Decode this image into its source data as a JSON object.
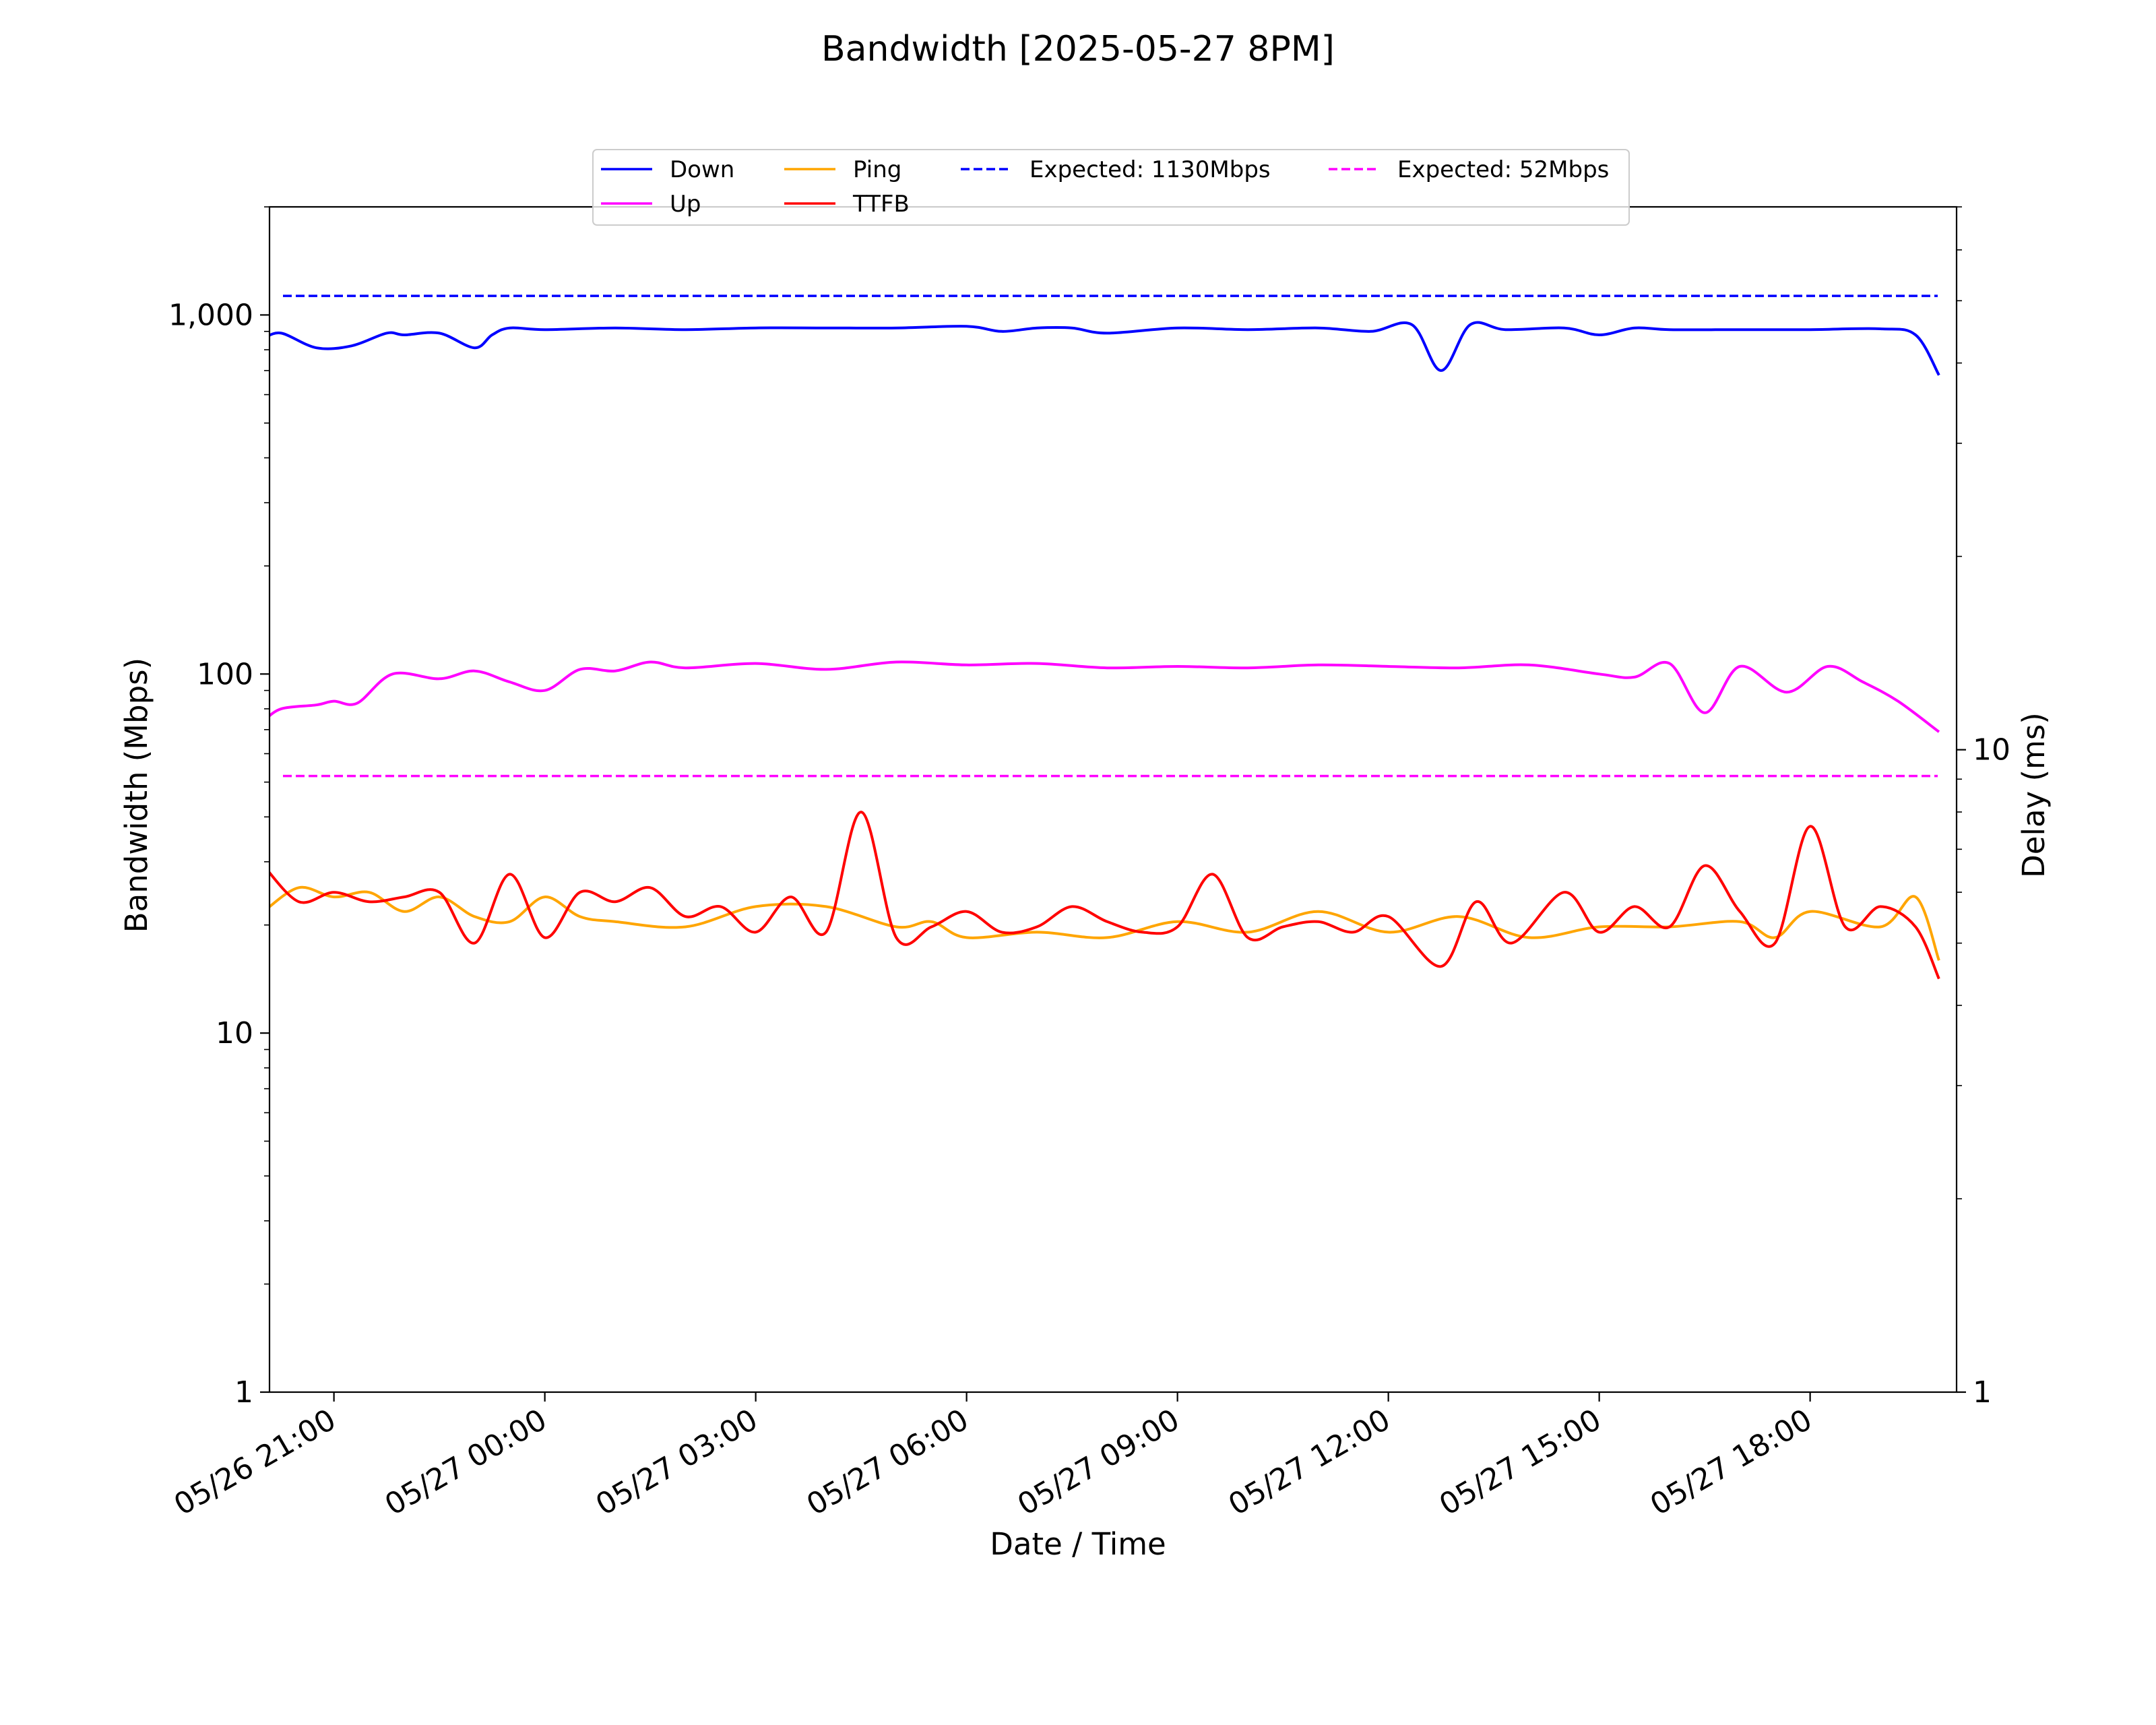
{
  "chart_data": {
    "type": "line",
    "title": "Bandwidth [2025-05-27 8PM]",
    "xlabel": "Date / Time",
    "ylabel": "Bandwidth (Mbps)",
    "y2label": "Delay (ms)",
    "y_scale": "log",
    "y2_scale": "log",
    "ylim": [
      1,
      2000
    ],
    "y2lim": [
      1,
      70
    ],
    "y_ticks": [
      1,
      10,
      100,
      1000
    ],
    "y_tick_labels": [
      "1",
      "10",
      "100",
      "1,000"
    ],
    "y2_ticks": [
      1,
      10
    ],
    "y2_tick_labels": [
      "1",
      "10"
    ],
    "xlim": [
      "2025-05-26 20:05",
      "2025-05-27 20:05"
    ],
    "x_ticks": [
      "2025-05-26 21:00",
      "2025-05-27 00:00",
      "2025-05-27 03:00",
      "2025-05-27 06:00",
      "2025-05-27 09:00",
      "2025-05-27 12:00",
      "2025-05-27 15:00",
      "2025-05-27 18:00"
    ],
    "x_tick_labels": [
      "05/26 21:00",
      "05/27 00:00",
      "05/27 03:00",
      "05/27 06:00",
      "05/27 09:00",
      "05/27 12:00",
      "05/27 15:00",
      "05/27 18:00"
    ],
    "grid": false,
    "legend_position": "top-center",
    "series": [
      {
        "name": "Down",
        "axis": "left",
        "color": "#0000ff",
        "style": "solid",
        "x": [
          "2025-05-26 20:00",
          "2025-05-26 20:15",
          "2025-05-26 20:45",
          "2025-05-26 21:15",
          "2025-05-26 21:45",
          "2025-05-26 22:00",
          "2025-05-26 22:30",
          "2025-05-26 23:00",
          "2025-05-26 23:15",
          "2025-05-26 23:30",
          "2025-05-27 00:00",
          "2025-05-27 01:00",
          "2025-05-27 02:00",
          "2025-05-27 03:00",
          "2025-05-27 04:00",
          "2025-05-27 05:00",
          "2025-05-27 06:00",
          "2025-05-27 06:30",
          "2025-05-27 07:00",
          "2025-05-27 07:30",
          "2025-05-27 08:00",
          "2025-05-27 09:00",
          "2025-05-27 10:00",
          "2025-05-27 11:00",
          "2025-05-27 11:45",
          "2025-05-27 12:20",
          "2025-05-27 12:45",
          "2025-05-27 13:10",
          "2025-05-27 13:40",
          "2025-05-27 14:30",
          "2025-05-27 15:00",
          "2025-05-27 15:30",
          "2025-05-27 16:00",
          "2025-05-27 17:00",
          "2025-05-27 18:00",
          "2025-05-27 19:00",
          "2025-05-27 19:30",
          "2025-05-27 19:50"
        ],
        "values": [
          860,
          890,
          810,
          820,
          890,
          880,
          890,
          810,
          880,
          920,
          910,
          920,
          910,
          920,
          920,
          920,
          930,
          900,
          920,
          920,
          890,
          920,
          910,
          920,
          900,
          940,
          700,
          940,
          910,
          920,
          880,
          920,
          910,
          910,
          910,
          915,
          880,
          680
        ]
      },
      {
        "name": "Up",
        "axis": "left",
        "color": "#ff00ff",
        "style": "solid",
        "x": [
          "2025-05-26 20:00",
          "2025-05-26 20:15",
          "2025-05-26 20:45",
          "2025-05-26 21:00",
          "2025-05-26 21:20",
          "2025-05-26 21:50",
          "2025-05-26 22:30",
          "2025-05-26 23:00",
          "2025-05-26 23:30",
          "2025-05-27 00:00",
          "2025-05-27 00:30",
          "2025-05-27 01:00",
          "2025-05-27 01:30",
          "2025-05-27 02:00",
          "2025-05-27 03:00",
          "2025-05-27 04:00",
          "2025-05-27 05:00",
          "2025-05-27 06:00",
          "2025-05-27 07:00",
          "2025-05-27 08:00",
          "2025-05-27 09:00",
          "2025-05-27 10:00",
          "2025-05-27 11:00",
          "2025-05-27 12:00",
          "2025-05-27 13:00",
          "2025-05-27 14:00",
          "2025-05-27 15:00",
          "2025-05-27 15:30",
          "2025-05-27 16:00",
          "2025-05-27 16:30",
          "2025-05-27 17:00",
          "2025-05-27 17:40",
          "2025-05-27 18:15",
          "2025-05-27 18:45",
          "2025-05-27 19:15",
          "2025-05-27 19:50"
        ],
        "values": [
          74,
          80,
          82,
          84,
          83,
          100,
          97,
          102,
          95,
          90,
          103,
          102,
          108,
          104,
          107,
          103,
          108,
          106,
          107,
          104,
          105,
          104,
          106,
          105,
          104,
          106,
          100,
          98,
          107,
          78,
          105,
          89,
          105,
          95,
          84,
          69
        ]
      },
      {
        "name": "Ping",
        "axis": "right",
        "color": "#ffa500",
        "style": "solid",
        "x": [
          "2025-05-26 20:00",
          "2025-05-26 20:30",
          "2025-05-26 21:00",
          "2025-05-26 21:30",
          "2025-05-26 22:00",
          "2025-05-26 22:30",
          "2025-05-26 23:00",
          "2025-05-26 23:30",
          "2025-05-27 00:00",
          "2025-05-27 00:30",
          "2025-05-27 01:00",
          "2025-05-27 02:00",
          "2025-05-27 03:00",
          "2025-05-27 04:00",
          "2025-05-27 05:00",
          "2025-05-27 05:30",
          "2025-05-27 06:00",
          "2025-05-27 07:00",
          "2025-05-27 08:00",
          "2025-05-27 09:00",
          "2025-05-27 10:00",
          "2025-05-27 11:00",
          "2025-05-27 12:00",
          "2025-05-27 13:00",
          "2025-05-27 14:00",
          "2025-05-27 15:00",
          "2025-05-27 16:00",
          "2025-05-27 17:00",
          "2025-05-27 17:30",
          "2025-05-27 18:00",
          "2025-05-27 19:00",
          "2025-05-27 19:30",
          "2025-05-27 19:50"
        ],
        "values": [
          5.6,
          6.1,
          5.9,
          6.0,
          5.6,
          5.9,
          5.5,
          5.4,
          5.9,
          5.5,
          5.4,
          5.3,
          5.7,
          5.7,
          5.3,
          5.4,
          5.1,
          5.2,
          5.1,
          5.4,
          5.2,
          5.6,
          5.2,
          5.5,
          5.1,
          5.3,
          5.3,
          5.4,
          5.1,
          5.6,
          5.3,
          5.9,
          4.7
        ]
      },
      {
        "name": "TTFB",
        "axis": "right",
        "color": "#ff0000",
        "style": "solid",
        "x": [
          "2025-05-26 20:00",
          "2025-05-26 20:30",
          "2025-05-26 21:00",
          "2025-05-26 21:30",
          "2025-05-26 22:00",
          "2025-05-26 22:30",
          "2025-05-26 23:00",
          "2025-05-26 23:30",
          "2025-05-27 00:00",
          "2025-05-27 00:30",
          "2025-05-27 01:00",
          "2025-05-27 01:30",
          "2025-05-27 02:00",
          "2025-05-27 02:30",
          "2025-05-27 03:00",
          "2025-05-27 03:30",
          "2025-05-27 04:00",
          "2025-05-27 04:30",
          "2025-05-27 05:00",
          "2025-05-27 05:30",
          "2025-05-27 06:00",
          "2025-05-27 06:30",
          "2025-05-27 07:00",
          "2025-05-27 07:30",
          "2025-05-27 08:00",
          "2025-05-27 08:30",
          "2025-05-27 09:00",
          "2025-05-27 09:30",
          "2025-05-27 10:00",
          "2025-05-27 10:30",
          "2025-05-27 11:00",
          "2025-05-27 11:30",
          "2025-05-27 12:00",
          "2025-05-27 12:45",
          "2025-05-27 13:15",
          "2025-05-27 13:45",
          "2025-05-27 14:30",
          "2025-05-27 15:00",
          "2025-05-27 15:30",
          "2025-05-27 16:00",
          "2025-05-27 16:30",
          "2025-05-27 17:00",
          "2025-05-27 17:30",
          "2025-05-27 18:00",
          "2025-05-27 18:30",
          "2025-05-27 19:00",
          "2025-05-27 19:30",
          "2025-05-27 19:50"
        ],
        "values": [
          6.6,
          5.8,
          6.0,
          5.8,
          5.9,
          6.0,
          5.0,
          6.4,
          5.1,
          6.0,
          5.8,
          6.1,
          5.5,
          5.7,
          5.2,
          5.9,
          5.2,
          8.0,
          5.1,
          5.3,
          5.6,
          5.2,
          5.3,
          5.7,
          5.4,
          5.2,
          5.3,
          6.4,
          5.1,
          5.3,
          5.4,
          5.2,
          5.5,
          4.6,
          5.8,
          5.0,
          6.0,
          5.2,
          5.7,
          5.3,
          6.6,
          5.6,
          5.0,
          7.6,
          5.3,
          5.7,
          5.3,
          4.4
        ]
      },
      {
        "name": "Expected: 1130Mbps",
        "axis": "left",
        "color": "#0000ff",
        "style": "dashed",
        "constant": 1130
      },
      {
        "name": "Expected: 52Mbps",
        "axis": "left",
        "color": "#ff00ff",
        "style": "dashed",
        "constant": 52
      }
    ]
  }
}
